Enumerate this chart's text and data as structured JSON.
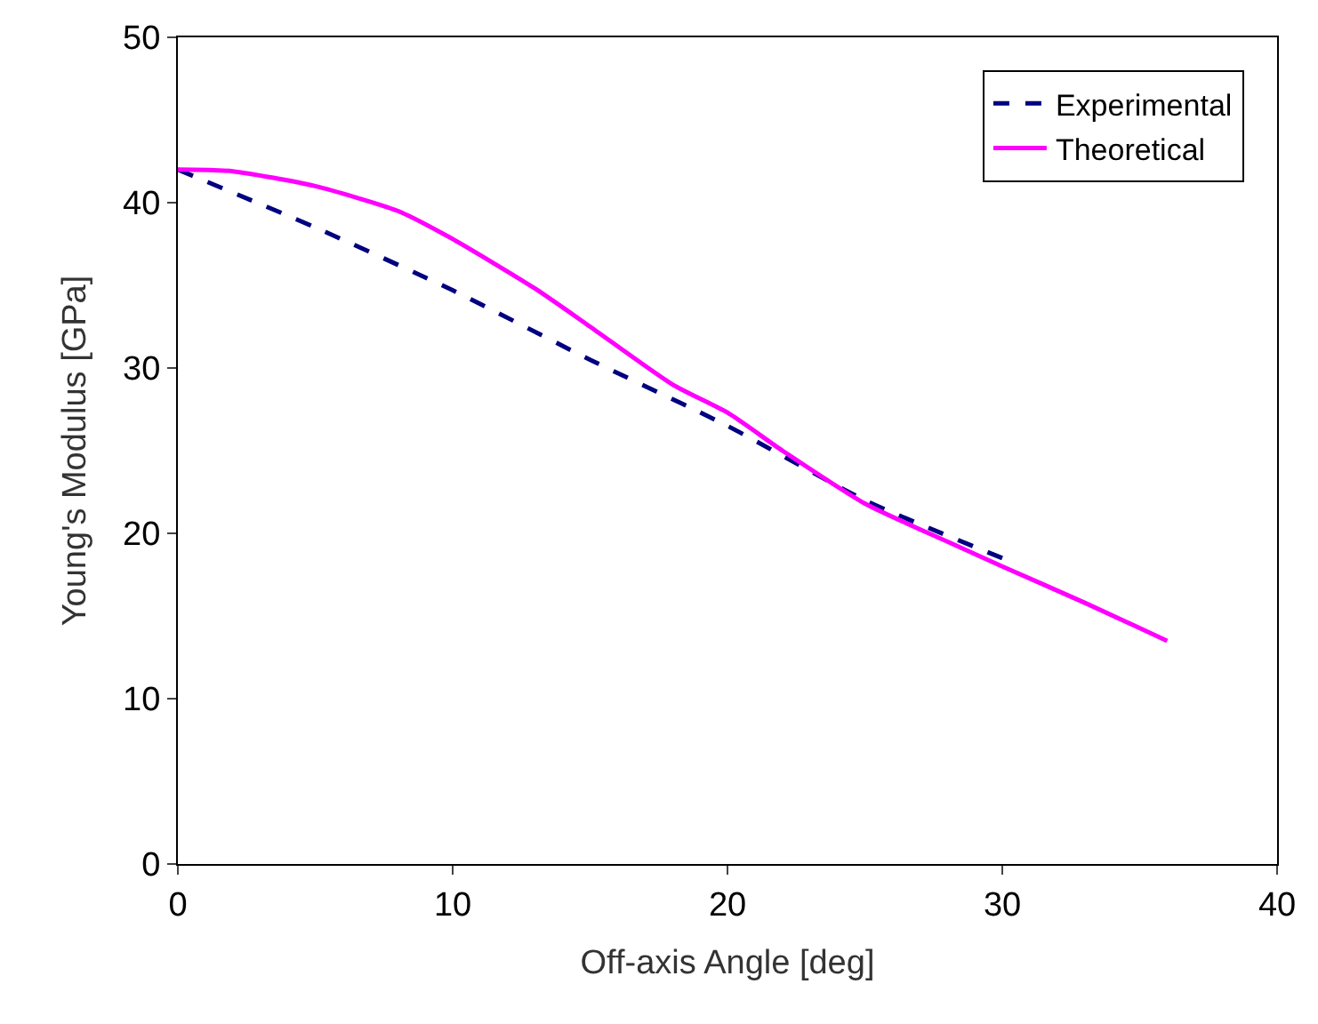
{
  "chart_data": {
    "type": "line",
    "xlabel": "Off-axis Angle [deg]",
    "ylabel": "Young's Modulus [GPa]",
    "xlim": [
      0,
      40
    ],
    "ylim": [
      0,
      50
    ],
    "xticks": [
      0,
      10,
      20,
      30,
      40
    ],
    "yticks": [
      0,
      10,
      20,
      30,
      40,
      50
    ],
    "grid": false,
    "legend": "top right",
    "marker": "none",
    "series": [
      {
        "name": "Experimental",
        "color": "#000080",
        "line_style": "dashed",
        "x": [
          0,
          5,
          10,
          15,
          20,
          25,
          30
        ],
        "values": [
          42,
          38.5,
          34.7,
          30.5,
          26.5,
          22,
          18.5
        ]
      },
      {
        "name": "Theoretical",
        "color": "#ff00ff",
        "line_style": "solid",
        "x": [
          0,
          2,
          5,
          8,
          10,
          13,
          15,
          18,
          20,
          22,
          25,
          28,
          30,
          33,
          36
        ],
        "values": [
          42,
          41.9,
          41,
          39.5,
          37.8,
          34.8,
          32.5,
          29,
          27.3,
          25,
          21.8,
          19.5,
          18,
          15.8,
          13.5
        ]
      }
    ]
  }
}
